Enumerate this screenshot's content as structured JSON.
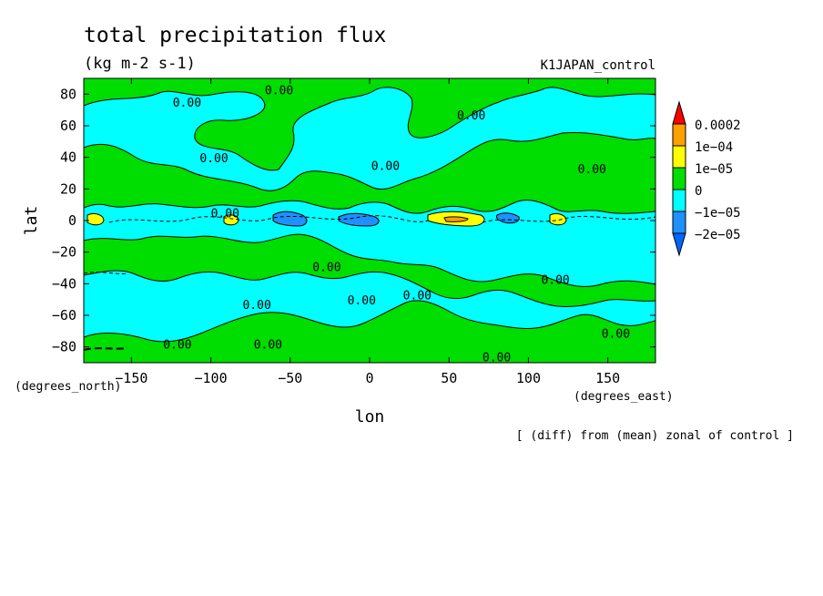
{
  "chart_data": {
    "type": "heatmap",
    "title": "total precipitation flux",
    "subtitle": "(kg m-2 s-1)",
    "run_label": "K1JAPAN_control",
    "xlabel": "lon",
    "ylabel": "lat",
    "x_unit_label": "(degrees_east)",
    "y_unit_label": "(degrees_north)",
    "note": "[ (diff) from (mean) zonal of control ]",
    "xlim": [
      -180,
      180
    ],
    "ylim": [
      -90,
      90
    ],
    "x_ticks": [
      -150,
      -100,
      -50,
      0,
      50,
      100,
      150
    ],
    "x_tick_labels": [
      "−150",
      "−100",
      "−50",
      "0",
      "50",
      "100",
      "150"
    ],
    "y_ticks": [
      80,
      60,
      40,
      20,
      0,
      -20,
      -40,
      -60,
      -80
    ],
    "y_tick_labels": [
      "80",
      "60",
      "40",
      "20",
      "0",
      "−20",
      "−40",
      "−60",
      "−80"
    ],
    "contour_label": "0.00",
    "legend": {
      "placement": "right",
      "levels": [
        {
          "label": "0.0002",
          "color": "#ff0000",
          "role": "over"
        },
        {
          "label": "1e−04",
          "color": "#ff9f00"
        },
        {
          "label": "1e−05",
          "color": "#ffff00"
        },
        {
          "label": "0",
          "color": "#00dd00"
        },
        {
          "label": "−1e−05",
          "color": "#00ffff"
        },
        {
          "label": "−2e−05",
          "color": "#1e90ff"
        }
      ],
      "under_color": "#0066ff"
    },
    "colors": {
      "positive_small": "#00dd00",
      "negative_small": "#00ffff",
      "negative_mid": "#1e90ff",
      "positive_mid": "#ffff00",
      "positive_high": "#ff9f00"
    },
    "contour_label_positions": [
      {
        "lon": -115,
        "lat": 72
      },
      {
        "lon": -57,
        "lat": 80
      },
      {
        "lon": 64,
        "lat": 64
      },
      {
        "lon": -98,
        "lat": 37
      },
      {
        "lon": 10,
        "lat": 32
      },
      {
        "lon": 140,
        "lat": 30
      },
      {
        "lon": -91,
        "lat": 2
      },
      {
        "lon": -27,
        "lat": -32
      },
      {
        "lon": -71,
        "lat": -56
      },
      {
        "lon": -5,
        "lat": -53
      },
      {
        "lon": 30,
        "lat": -50
      },
      {
        "lon": 117,
        "lat": -40
      },
      {
        "lon": -121,
        "lat": -81
      },
      {
        "lon": -64,
        "lat": -81
      },
      {
        "lon": 155,
        "lat": -74
      },
      {
        "lon": 80,
        "lat": -89
      }
    ]
  }
}
